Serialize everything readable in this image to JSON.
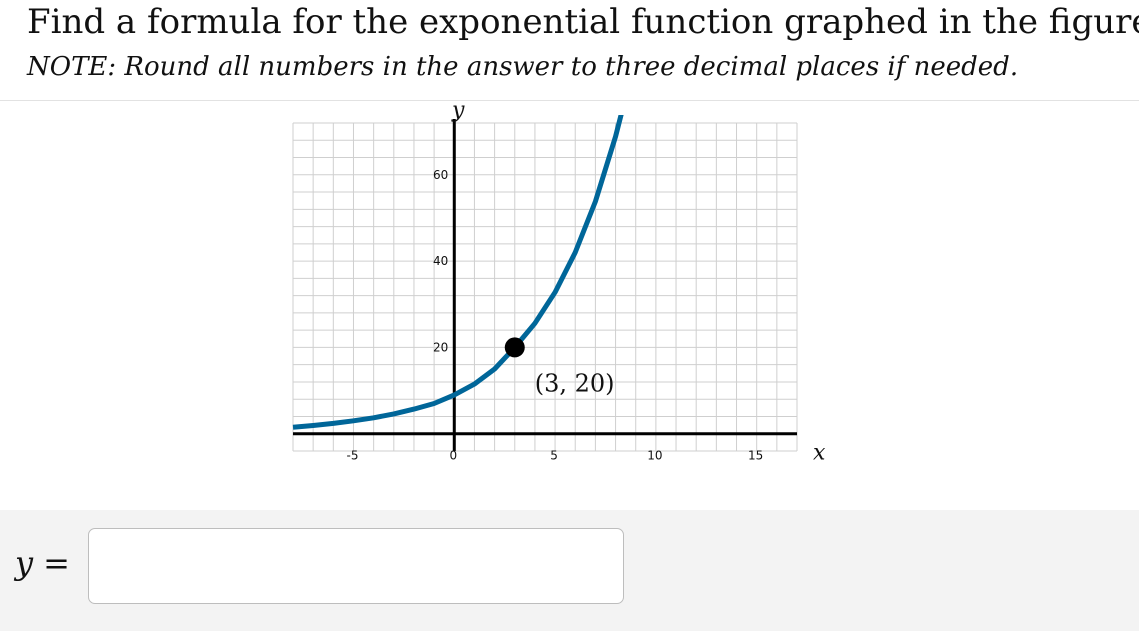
{
  "question": {
    "title": "Find a formula for the exponential function graphed in the figure.",
    "note": "NOTE: Round all numbers in the answer to three decimal places if needed."
  },
  "chart_data": {
    "type": "line",
    "xlabel": "x",
    "ylabel": "y",
    "xlim": [
      -8,
      17
    ],
    "ylim": [
      -4,
      72
    ],
    "grid": true,
    "x_ticks": [
      -5,
      0,
      5,
      10,
      15
    ],
    "x_tick_labels": [
      "-5",
      "0",
      "5",
      "10",
      "15"
    ],
    "y_ticks": [
      20,
      40,
      60
    ],
    "y_tick_labels": [
      "20",
      "40",
      "60"
    ],
    "series": [
      {
        "color": "#006699",
        "x": [
          -8,
          -7,
          -6,
          -5,
          -4,
          -3,
          -2,
          -1,
          0,
          1,
          2,
          3,
          4,
          5,
          6,
          7,
          8,
          8.5
        ],
        "y": [
          1.5,
          1.9,
          2.4,
          3.0,
          3.7,
          4.6,
          5.7,
          7.0,
          9.0,
          11.5,
          15.0,
          20.0,
          25.6,
          32.8,
          42.0,
          53.8,
          68.9,
          78.0
        ]
      }
    ],
    "point": {
      "x": 3,
      "y": 20,
      "label": "(3, 20)",
      "color": "#000000"
    }
  },
  "answer": {
    "lhs": "y",
    "eq": "=",
    "value": "",
    "placeholder": ""
  }
}
